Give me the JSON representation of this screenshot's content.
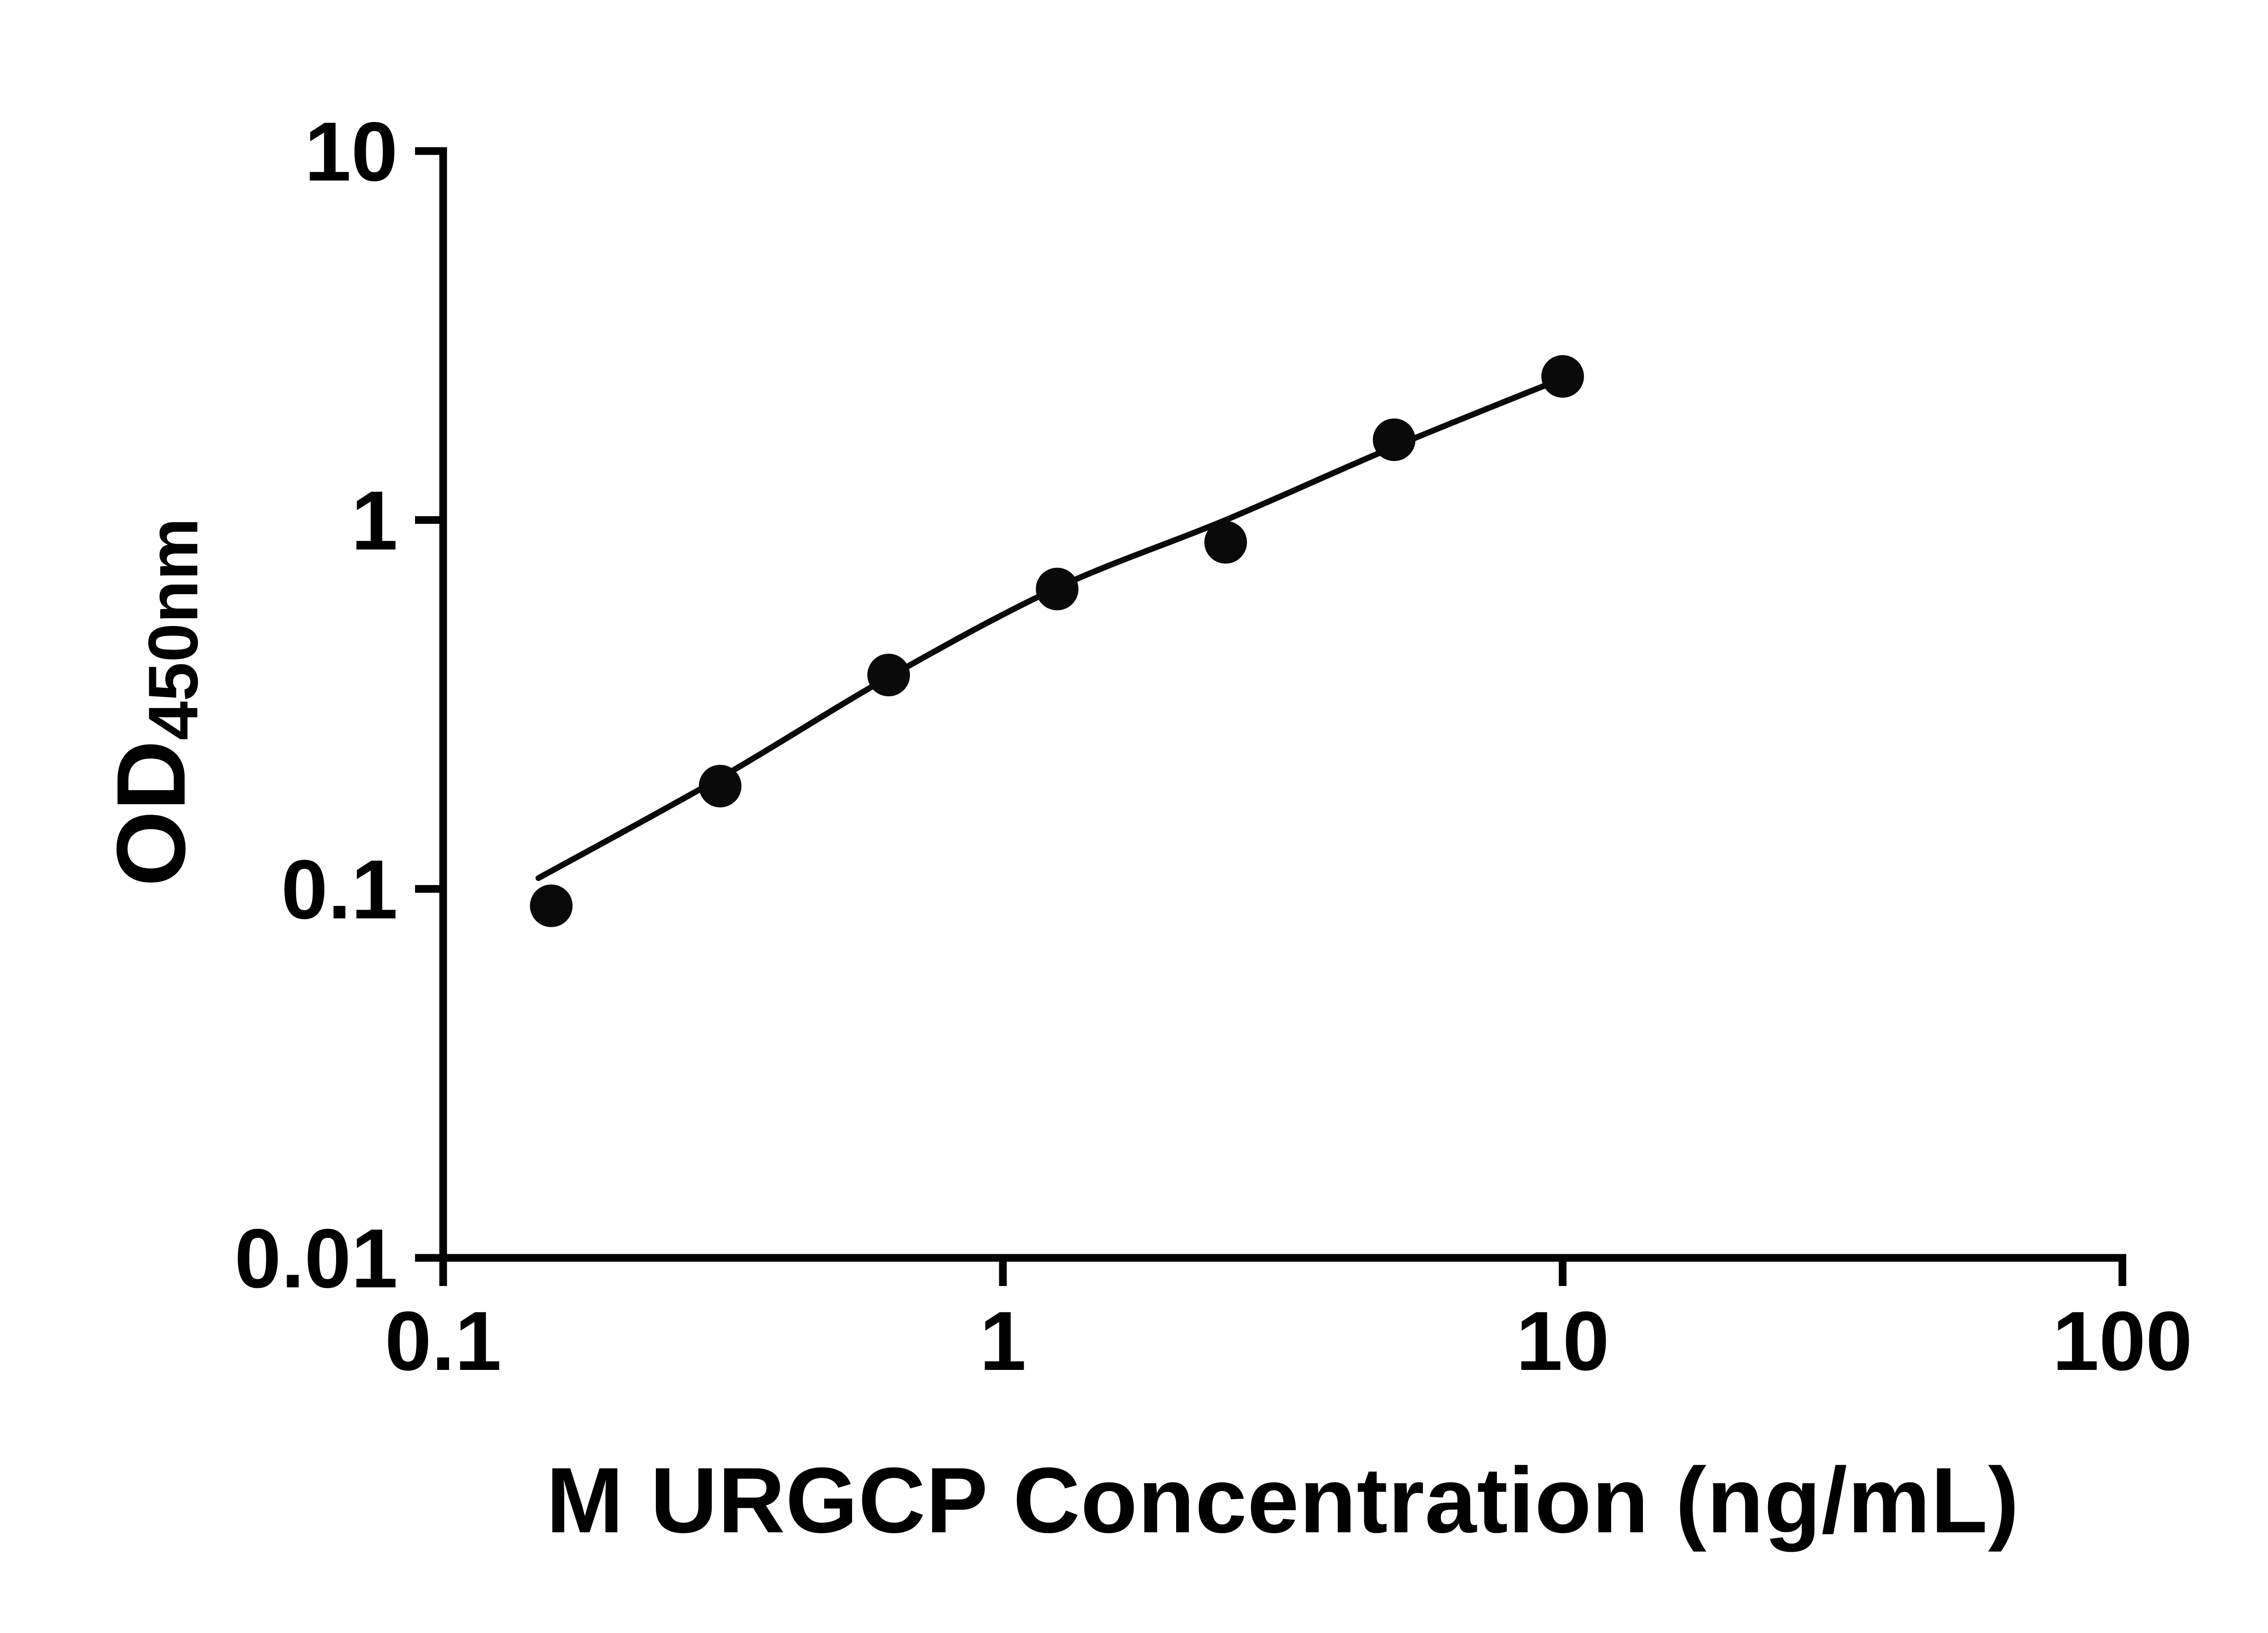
{
  "chart_data": {
    "type": "scatter",
    "title": "",
    "xlabel": "M URGCP Concentration (ng/mL)",
    "ylabel": "OD450nm",
    "ylabel_main": "OD",
    "ylabel_sub": "450nm",
    "x_scale": "log",
    "y_scale": "log",
    "xlim": [
      0.1,
      100
    ],
    "ylim": [
      0.01,
      10
    ],
    "x_ticks": [
      0.1,
      1,
      10,
      100
    ],
    "x_tick_labels": [
      "0.1",
      "1",
      "10",
      "100"
    ],
    "y_ticks": [
      0.01,
      0.1,
      1,
      10
    ],
    "y_tick_labels": [
      "0.01",
      "0.1",
      "1",
      "10"
    ],
    "points": [
      [
        0.156,
        0.09
      ],
      [
        0.3125,
        0.19
      ],
      [
        0.625,
        0.38
      ],
      [
        1.25,
        0.65
      ],
      [
        2.5,
        0.87
      ],
      [
        5,
        1.65
      ],
      [
        10,
        2.45
      ]
    ],
    "curve": [
      [
        0.148,
        0.107
      ],
      [
        0.3125,
        0.2
      ],
      [
        0.625,
        0.375
      ],
      [
        1.25,
        0.655
      ],
      [
        2.5,
        1.0
      ],
      [
        5,
        1.58
      ],
      [
        10,
        2.42
      ]
    ],
    "grid": false,
    "legend": null,
    "marker_color": "#0a0a0a",
    "line_color": "#0a0a0a",
    "axis_color": "#000000",
    "background_color": "#ffffff"
  }
}
